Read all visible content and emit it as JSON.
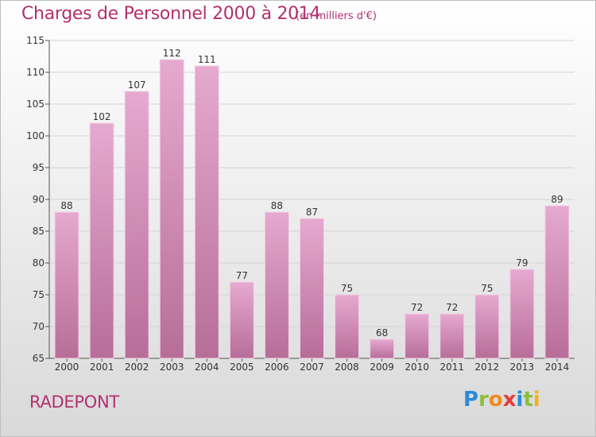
{
  "header": {
    "title": "Charges de Personnel 2000 à 2014",
    "subtitle": "(en milliers d'€)"
  },
  "footer": {
    "place": "RADEPONT",
    "logo": [
      "P",
      "r",
      "o",
      "x",
      "i",
      "t",
      "i"
    ]
  },
  "colors": {
    "accent": "#b1306f",
    "bar_top": "#e6a9cf",
    "bar_bottom": "#b66e98",
    "bar_edge": "#f3d1e6",
    "grid": "#d4d4d4"
  },
  "chart_data": {
    "type": "bar",
    "title": "Charges de Personnel 2000 à 2014",
    "subtitle": "(en milliers d'€)",
    "categories": [
      "2000",
      "2001",
      "2002",
      "2003",
      "2004",
      "2005",
      "2006",
      "2007",
      "2008",
      "2009",
      "2010",
      "2011",
      "2012",
      "2013",
      "2014"
    ],
    "values": [
      88,
      102,
      107,
      112,
      111,
      77,
      88,
      87,
      75,
      68,
      72,
      72,
      75,
      79,
      89
    ],
    "ylim": [
      65,
      115
    ],
    "yticks": [
      65,
      70,
      75,
      80,
      85,
      90,
      95,
      100,
      105,
      110,
      115
    ],
    "grid": true,
    "data_labels": true
  }
}
